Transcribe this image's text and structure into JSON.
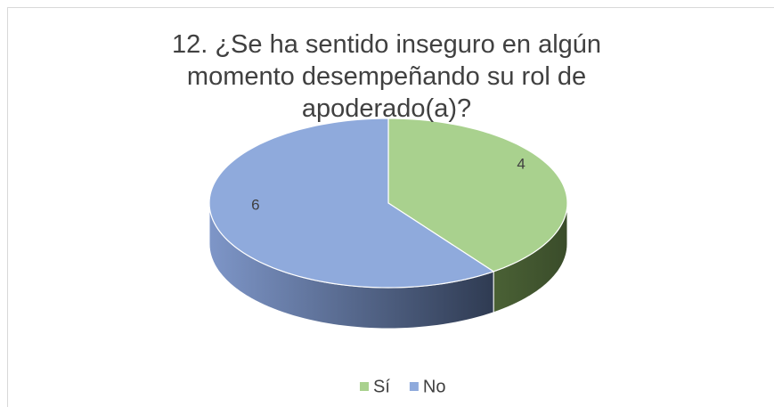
{
  "chart_data": {
    "type": "pie3d",
    "title": "12. ¿Se ha sentido inseguro en algún momento desempeñando su rol de apoderado(a)?",
    "categories": [
      "Sí",
      "No"
    ],
    "values": [
      4,
      6
    ],
    "colors": [
      "#a9d18e",
      "#8faadc"
    ],
    "legend": "bottom"
  }
}
